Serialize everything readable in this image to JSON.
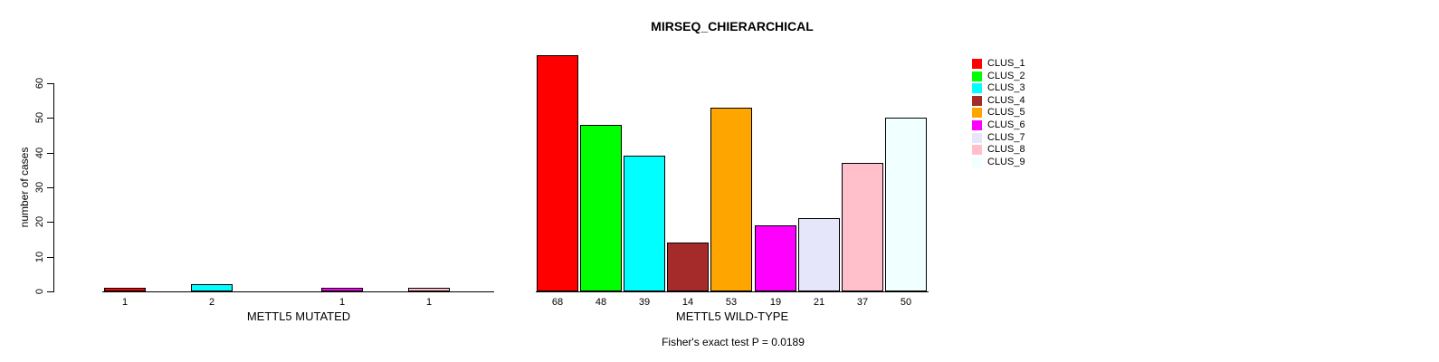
{
  "chart_data": {
    "type": "bar",
    "title": "MIRSEQ_CHIERARCHICAL",
    "ylabel": "number of cases",
    "ylim": [
      0,
      60
    ],
    "yticks": [
      0,
      10,
      20,
      30,
      40,
      50,
      60
    ],
    "grid": false,
    "annotation": "Fisher's exact test P = 0.0189",
    "categories": [
      "CLUS_1",
      "CLUS_2",
      "CLUS_3",
      "CLUS_4",
      "CLUS_5",
      "CLUS_6",
      "CLUS_7",
      "CLUS_8",
      "CLUS_9"
    ],
    "colors": [
      "#FF0000",
      "#00FF00",
      "#00FFFF",
      "#A52A2A",
      "#FFA500",
      "#FF00FF",
      "#E6E6FA",
      "#FFC0CB",
      "#F0FFFF"
    ],
    "bar_border_color": "#000000",
    "legend": {
      "position": "right",
      "entries": [
        {
          "label": "CLUS_1",
          "color": "#FF0000"
        },
        {
          "label": "CLUS_2",
          "color": "#00FF00"
        },
        {
          "label": "CLUS_3",
          "color": "#00FFFF"
        },
        {
          "label": "CLUS_4",
          "color": "#A52A2A"
        },
        {
          "label": "CLUS_5",
          "color": "#FFA500"
        },
        {
          "label": "CLUS_6",
          "color": "#FF00FF"
        },
        {
          "label": "CLUS_7",
          "color": "#E6E6FA"
        },
        {
          "label": "CLUS_8",
          "color": "#FFC0CB"
        },
        {
          "label": "CLUS_9",
          "color": "#F0FFFF"
        }
      ]
    },
    "series": [
      {
        "name": "METTL5 MUTATED",
        "xlabel": "METTL5 MUTATED",
        "values": [
          1,
          0,
          2,
          0,
          0,
          1,
          0,
          1,
          0
        ],
        "bar_value_labels_shown": [
          "1",
          "2",
          "1",
          "1"
        ]
      },
      {
        "name": "METTL5 WILD-TYPE",
        "xlabel": "METTL5 WILD-TYPE",
        "values": [
          68,
          48,
          39,
          14,
          53,
          19,
          21,
          37,
          50
        ],
        "bar_value_labels_shown": [
          "68",
          "48",
          "39",
          "14",
          "53",
          "19",
          "21",
          "37",
          "50"
        ]
      }
    ]
  }
}
